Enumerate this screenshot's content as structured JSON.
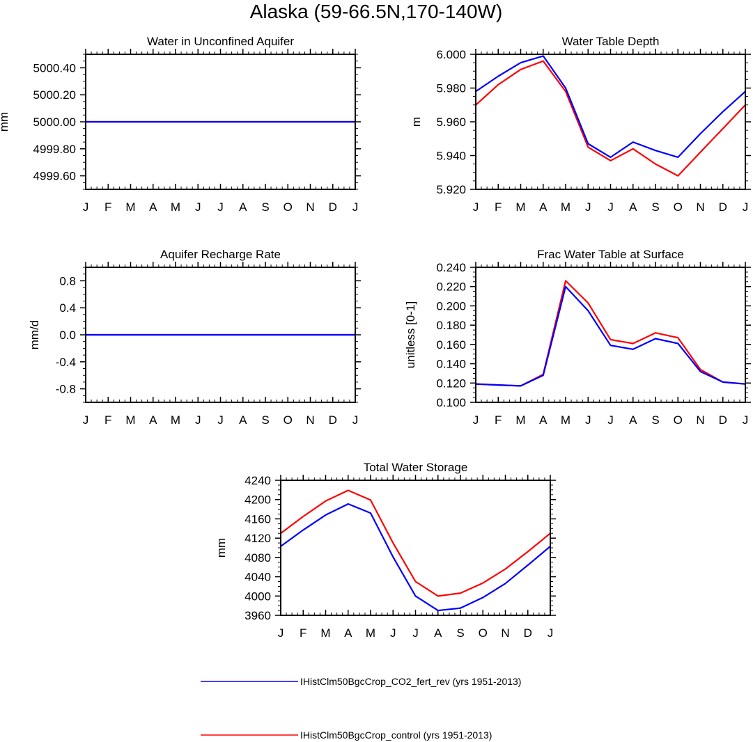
{
  "figure": {
    "title": "Alaska (59-66.5N,170-140W)",
    "month_labels": [
      "J",
      "F",
      "M",
      "A",
      "M",
      "J",
      "J",
      "A",
      "S",
      "O",
      "N",
      "D",
      "J"
    ]
  },
  "legend": [
    {
      "label": "IHistClm50BgcCrop_CO2_fert_rev (yrs 1951-2013)",
      "color": "#0000ff"
    },
    {
      "label": "IHistClm50BgcCrop_control (yrs 1951-2013)",
      "color": "#ff0000"
    }
  ],
  "chart_data": [
    {
      "type": "line",
      "title": "Water in Unconfined Aquifer",
      "ylabel": "mm",
      "xlabel": "",
      "ylim": [
        4999.5,
        5000.5
      ],
      "yticks": [
        4999.6,
        4999.8,
        5000.0,
        5000.2,
        5000.4
      ],
      "ytick_labels": [
        "4999.60",
        "4999.80",
        "5000.00",
        "5000.20",
        "5000.40"
      ],
      "categories": [
        "J",
        "F",
        "M",
        "A",
        "M",
        "J",
        "J",
        "A",
        "S",
        "O",
        "N",
        "D",
        "J"
      ],
      "series": [
        {
          "color": "#ff0000",
          "values": [
            5000,
            5000,
            5000,
            5000,
            5000,
            5000,
            5000,
            5000,
            5000,
            5000,
            5000,
            5000,
            5000
          ]
        },
        {
          "color": "#0000ff",
          "values": [
            5000,
            5000,
            5000,
            5000,
            5000,
            5000,
            5000,
            5000,
            5000,
            5000,
            5000,
            5000,
            5000
          ]
        }
      ]
    },
    {
      "type": "line",
      "title": "Water Table Depth",
      "ylabel": "m",
      "xlabel": "",
      "ylim": [
        5.92,
        6.0
      ],
      "yticks": [
        5.92,
        5.94,
        5.96,
        5.98,
        6.0
      ],
      "ytick_labels": [
        "5.920",
        "5.940",
        "5.960",
        "5.980",
        "6.000"
      ],
      "categories": [
        "J",
        "F",
        "M",
        "A",
        "M",
        "J",
        "J",
        "A",
        "S",
        "O",
        "N",
        "D",
        "J"
      ],
      "series": [
        {
          "color": "#ff0000",
          "values": [
            5.97,
            5.982,
            5.991,
            5.996,
            5.978,
            5.945,
            5.937,
            5.944,
            5.935,
            5.928,
            5.942,
            5.956,
            5.97
          ]
        },
        {
          "color": "#0000ff",
          "values": [
            5.978,
            5.987,
            5.995,
            5.999,
            5.98,
            5.947,
            5.939,
            5.948,
            5.943,
            5.939,
            5.953,
            5.966,
            5.978
          ]
        }
      ]
    },
    {
      "type": "line",
      "title": "Aquifer Recharge Rate",
      "ylabel": "mm/d",
      "xlabel": "",
      "ylim": [
        -1.0,
        1.0
      ],
      "yticks": [
        -0.8,
        -0.4,
        0.0,
        0.4,
        0.8
      ],
      "ytick_labels": [
        "-0.8",
        "-0.4",
        "0.0",
        "0.4",
        "0.8"
      ],
      "categories": [
        "J",
        "F",
        "M",
        "A",
        "M",
        "J",
        "J",
        "A",
        "S",
        "O",
        "N",
        "D",
        "J"
      ],
      "series": [
        {
          "color": "#ff0000",
          "values": [
            0,
            0,
            0,
            0,
            0,
            0,
            0,
            0,
            0,
            0,
            0,
            0,
            0
          ]
        },
        {
          "color": "#0000ff",
          "values": [
            0,
            0,
            0,
            0,
            0,
            0,
            0,
            0,
            0,
            0,
            0,
            0,
            0
          ]
        }
      ]
    },
    {
      "type": "line",
      "title": "Frac Water Table at Surface",
      "ylabel": "unitless [0-1]",
      "xlabel": "",
      "ylim": [
        0.1,
        0.24
      ],
      "yticks": [
        0.1,
        0.12,
        0.14,
        0.16,
        0.18,
        0.2,
        0.22,
        0.24
      ],
      "ytick_labels": [
        "0.100",
        "0.120",
        "0.140",
        "0.160",
        "0.180",
        "0.200",
        "0.220",
        "0.240"
      ],
      "categories": [
        "J",
        "F",
        "M",
        "A",
        "M",
        "J",
        "J",
        "A",
        "S",
        "O",
        "N",
        "D",
        "J"
      ],
      "series": [
        {
          "color": "#ff0000",
          "values": [
            0.119,
            0.118,
            0.117,
            0.129,
            0.226,
            0.203,
            0.165,
            0.161,
            0.172,
            0.167,
            0.134,
            0.121,
            0.119
          ]
        },
        {
          "color": "#0000ff",
          "values": [
            0.119,
            0.118,
            0.117,
            0.128,
            0.22,
            0.195,
            0.159,
            0.155,
            0.166,
            0.161,
            0.132,
            0.121,
            0.119
          ]
        }
      ]
    },
    {
      "type": "line",
      "title": "Total Water Storage",
      "ylabel": "mm",
      "xlabel": "",
      "ylim": [
        3960,
        4240
      ],
      "yticks": [
        3960,
        4000,
        4040,
        4080,
        4120,
        4160,
        4200,
        4240
      ],
      "ytick_labels": [
        "3960",
        "4000",
        "4040",
        "4080",
        "4120",
        "4160",
        "4200",
        "4240"
      ],
      "categories": [
        "J",
        "F",
        "M",
        "A",
        "M",
        "J",
        "J",
        "A",
        "S",
        "O",
        "N",
        "D",
        "J"
      ],
      "series": [
        {
          "color": "#ff0000",
          "values": [
            4130,
            4165,
            4197,
            4219,
            4199,
            4110,
            4030,
            4000,
            4006,
            4027,
            4056,
            4092,
            4130
          ]
        },
        {
          "color": "#0000ff",
          "values": [
            4103,
            4137,
            4168,
            4191,
            4172,
            4081,
            4000,
            3970,
            3975,
            3997,
            4026,
            4064,
            4103
          ]
        }
      ]
    }
  ]
}
